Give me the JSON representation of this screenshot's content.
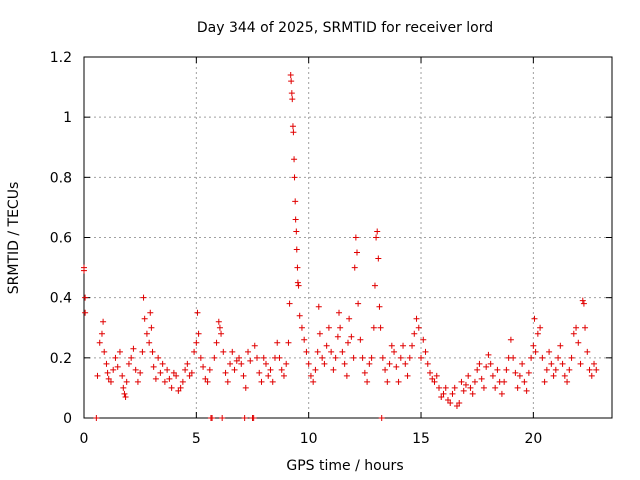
{
  "chart_data": {
    "type": "scatter",
    "title": "Day 344 of 2025, SRMTID for receiver lord",
    "xlabel": "GPS time / hours",
    "ylabel": "SRMTID / TECUs",
    "xlim": [
      0,
      23.5
    ],
    "ylim": [
      0,
      1.2
    ],
    "x_ticks": [
      0,
      5,
      10,
      15,
      20
    ],
    "y_ticks": [
      0,
      0.2,
      0.4,
      0.6,
      0.8,
      1,
      1.2
    ],
    "x_tick_labels": [
      "0",
      "5",
      "10",
      "15",
      "20"
    ],
    "y_tick_labels": [
      "0",
      "0.2",
      "0.4",
      "0.6",
      "0.8",
      "1",
      "1.2"
    ],
    "grid": true,
    "marker": "+",
    "marker_color": "#e00000",
    "series": [
      {
        "name": "SRMTID",
        "points": [
          [
            0.0,
            0.5
          ],
          [
            0.0,
            0.49
          ],
          [
            0.05,
            0.4
          ],
          [
            0.05,
            0.35
          ],
          [
            0.55,
            0.0
          ],
          [
            0.6,
            0.14
          ],
          [
            0.7,
            0.25
          ],
          [
            0.8,
            0.28
          ],
          [
            0.85,
            0.32
          ],
          [
            0.9,
            0.22
          ],
          [
            1.0,
            0.18
          ],
          [
            1.05,
            0.15
          ],
          [
            1.1,
            0.13
          ],
          [
            1.2,
            0.12
          ],
          [
            1.3,
            0.16
          ],
          [
            1.4,
            0.2
          ],
          [
            1.5,
            0.17
          ],
          [
            1.6,
            0.22
          ],
          [
            1.7,
            0.14
          ],
          [
            1.75,
            0.1
          ],
          [
            1.8,
            0.08
          ],
          [
            1.85,
            0.07
          ],
          [
            1.9,
            0.12
          ],
          [
            2.0,
            0.18
          ],
          [
            2.1,
            0.2
          ],
          [
            2.2,
            0.23
          ],
          [
            2.3,
            0.16
          ],
          [
            2.4,
            0.12
          ],
          [
            2.5,
            0.15
          ],
          [
            2.6,
            0.22
          ],
          [
            2.65,
            0.4
          ],
          [
            2.7,
            0.33
          ],
          [
            2.8,
            0.28
          ],
          [
            2.9,
            0.25
          ],
          [
            2.95,
            0.35
          ],
          [
            3.0,
            0.3
          ],
          [
            3.05,
            0.22
          ],
          [
            3.1,
            0.17
          ],
          [
            3.2,
            0.13
          ],
          [
            3.3,
            0.2
          ],
          [
            3.4,
            0.15
          ],
          [
            3.5,
            0.18
          ],
          [
            3.6,
            0.12
          ],
          [
            3.7,
            0.16
          ],
          [
            3.8,
            0.13
          ],
          [
            3.9,
            0.1
          ],
          [
            4.0,
            0.15
          ],
          [
            4.1,
            0.14
          ],
          [
            4.2,
            0.09
          ],
          [
            4.3,
            0.1
          ],
          [
            4.4,
            0.12
          ],
          [
            4.5,
            0.16
          ],
          [
            4.6,
            0.18
          ],
          [
            4.7,
            0.14
          ],
          [
            4.8,
            0.15
          ],
          [
            4.9,
            0.22
          ],
          [
            5.0,
            0.25
          ],
          [
            5.05,
            0.35
          ],
          [
            5.1,
            0.28
          ],
          [
            5.2,
            0.2
          ],
          [
            5.3,
            0.17
          ],
          [
            5.4,
            0.13
          ],
          [
            5.5,
            0.12
          ],
          [
            5.6,
            0.16
          ],
          [
            5.65,
            0.0
          ],
          [
            5.7,
            0.0
          ],
          [
            5.8,
            0.2
          ],
          [
            5.9,
            0.25
          ],
          [
            6.0,
            0.32
          ],
          [
            6.05,
            0.3
          ],
          [
            6.1,
            0.28
          ],
          [
            6.15,
            0.0
          ],
          [
            6.2,
            0.22
          ],
          [
            6.3,
            0.15
          ],
          [
            6.4,
            0.12
          ],
          [
            6.5,
            0.18
          ],
          [
            6.6,
            0.22
          ],
          [
            6.7,
            0.16
          ],
          [
            6.8,
            0.19
          ],
          [
            6.9,
            0.2
          ],
          [
            7.0,
            0.18
          ],
          [
            7.1,
            0.14
          ],
          [
            7.15,
            0.0
          ],
          [
            7.2,
            0.1
          ],
          [
            7.3,
            0.22
          ],
          [
            7.4,
            0.19
          ],
          [
            7.5,
            0.0
          ],
          [
            7.55,
            0.0
          ],
          [
            7.6,
            0.24
          ],
          [
            7.7,
            0.2
          ],
          [
            7.8,
            0.15
          ],
          [
            7.9,
            0.12
          ],
          [
            8.0,
            0.2
          ],
          [
            8.1,
            0.18
          ],
          [
            8.2,
            0.14
          ],
          [
            8.3,
            0.16
          ],
          [
            8.4,
            0.12
          ],
          [
            8.5,
            0.2
          ],
          [
            8.6,
            0.25
          ],
          [
            8.7,
            0.2
          ],
          [
            8.8,
            0.16
          ],
          [
            8.9,
            0.14
          ],
          [
            9.0,
            0.18
          ],
          [
            9.1,
            0.25
          ],
          [
            9.15,
            0.38
          ],
          [
            9.2,
            1.14
          ],
          [
            9.22,
            1.12
          ],
          [
            9.25,
            1.08
          ],
          [
            9.27,
            1.06
          ],
          [
            9.3,
            0.97
          ],
          [
            9.32,
            0.95
          ],
          [
            9.35,
            0.86
          ],
          [
            9.37,
            0.8
          ],
          [
            9.4,
            0.72
          ],
          [
            9.42,
            0.66
          ],
          [
            9.45,
            0.62
          ],
          [
            9.47,
            0.56
          ],
          [
            9.5,
            0.5
          ],
          [
            9.52,
            0.45
          ],
          [
            9.55,
            0.44
          ],
          [
            9.6,
            0.34
          ],
          [
            9.7,
            0.3
          ],
          [
            9.8,
            0.26
          ],
          [
            9.9,
            0.22
          ],
          [
            10.0,
            0.18
          ],
          [
            10.1,
            0.14
          ],
          [
            10.2,
            0.12
          ],
          [
            10.3,
            0.16
          ],
          [
            10.4,
            0.22
          ],
          [
            10.45,
            0.37
          ],
          [
            10.5,
            0.28
          ],
          [
            10.6,
            0.2
          ],
          [
            10.7,
            0.18
          ],
          [
            10.8,
            0.24
          ],
          [
            10.9,
            0.3
          ],
          [
            11.0,
            0.22
          ],
          [
            11.1,
            0.16
          ],
          [
            11.2,
            0.2
          ],
          [
            11.3,
            0.27
          ],
          [
            11.35,
            0.35
          ],
          [
            11.4,
            0.3
          ],
          [
            11.5,
            0.22
          ],
          [
            11.6,
            0.18
          ],
          [
            11.7,
            0.14
          ],
          [
            11.75,
            0.25
          ],
          [
            11.8,
            0.33
          ],
          [
            11.9,
            0.27
          ],
          [
            12.0,
            0.2
          ],
          [
            12.05,
            0.5
          ],
          [
            12.1,
            0.6
          ],
          [
            12.15,
            0.55
          ],
          [
            12.2,
            0.38
          ],
          [
            12.3,
            0.26
          ],
          [
            12.4,
            0.2
          ],
          [
            12.5,
            0.15
          ],
          [
            12.6,
            0.12
          ],
          [
            12.7,
            0.18
          ],
          [
            12.8,
            0.2
          ],
          [
            12.9,
            0.3
          ],
          [
            12.95,
            0.44
          ],
          [
            13.0,
            0.6
          ],
          [
            13.05,
            0.62
          ],
          [
            13.1,
            0.53
          ],
          [
            13.15,
            0.37
          ],
          [
            13.2,
            0.3
          ],
          [
            13.25,
            0.0
          ],
          [
            13.3,
            0.2
          ],
          [
            13.4,
            0.16
          ],
          [
            13.5,
            0.12
          ],
          [
            13.6,
            0.18
          ],
          [
            13.7,
            0.24
          ],
          [
            13.8,
            0.22
          ],
          [
            13.9,
            0.17
          ],
          [
            14.0,
            0.12
          ],
          [
            14.1,
            0.2
          ],
          [
            14.2,
            0.24
          ],
          [
            14.3,
            0.18
          ],
          [
            14.4,
            0.14
          ],
          [
            14.5,
            0.2
          ],
          [
            14.6,
            0.24
          ],
          [
            14.7,
            0.28
          ],
          [
            14.8,
            0.33
          ],
          [
            14.9,
            0.3
          ],
          [
            15.0,
            0.2
          ],
          [
            15.1,
            0.26
          ],
          [
            15.2,
            0.22
          ],
          [
            15.3,
            0.18
          ],
          [
            15.4,
            0.15
          ],
          [
            15.5,
            0.13
          ],
          [
            15.6,
            0.12
          ],
          [
            15.7,
            0.14
          ],
          [
            15.8,
            0.1
          ],
          [
            15.9,
            0.07
          ],
          [
            16.0,
            0.08
          ],
          [
            16.1,
            0.1
          ],
          [
            16.2,
            0.06
          ],
          [
            16.3,
            0.05
          ],
          [
            16.4,
            0.08
          ],
          [
            16.5,
            0.1
          ],
          [
            16.6,
            0.04
          ],
          [
            16.7,
            0.05
          ],
          [
            16.8,
            0.12
          ],
          [
            16.9,
            0.09
          ],
          [
            17.0,
            0.11
          ],
          [
            17.1,
            0.14
          ],
          [
            17.2,
            0.1
          ],
          [
            17.3,
            0.08
          ],
          [
            17.4,
            0.12
          ],
          [
            17.5,
            0.16
          ],
          [
            17.6,
            0.18
          ],
          [
            17.7,
            0.13
          ],
          [
            17.8,
            0.1
          ],
          [
            17.9,
            0.17
          ],
          [
            18.0,
            0.21
          ],
          [
            18.1,
            0.18
          ],
          [
            18.2,
            0.14
          ],
          [
            18.3,
            0.1
          ],
          [
            18.4,
            0.16
          ],
          [
            18.5,
            0.12
          ],
          [
            18.6,
            0.08
          ],
          [
            18.7,
            0.12
          ],
          [
            18.8,
            0.16
          ],
          [
            18.9,
            0.2
          ],
          [
            19.0,
            0.26
          ],
          [
            19.1,
            0.2
          ],
          [
            19.2,
            0.15
          ],
          [
            19.3,
            0.1
          ],
          [
            19.4,
            0.14
          ],
          [
            19.5,
            0.18
          ],
          [
            19.6,
            0.12
          ],
          [
            19.7,
            0.09
          ],
          [
            19.8,
            0.15
          ],
          [
            19.9,
            0.2
          ],
          [
            20.0,
            0.24
          ],
          [
            20.05,
            0.33
          ],
          [
            20.1,
            0.22
          ],
          [
            20.2,
            0.28
          ],
          [
            20.3,
            0.3
          ],
          [
            20.4,
            0.2
          ],
          [
            20.5,
            0.12
          ],
          [
            20.6,
            0.16
          ],
          [
            20.7,
            0.22
          ],
          [
            20.8,
            0.18
          ],
          [
            20.9,
            0.14
          ],
          [
            21.0,
            0.16
          ],
          [
            21.1,
            0.2
          ],
          [
            21.2,
            0.24
          ],
          [
            21.3,
            0.18
          ],
          [
            21.4,
            0.14
          ],
          [
            21.5,
            0.12
          ],
          [
            21.6,
            0.16
          ],
          [
            21.7,
            0.2
          ],
          [
            21.8,
            0.28
          ],
          [
            21.9,
            0.3
          ],
          [
            22.0,
            0.25
          ],
          [
            22.1,
            0.18
          ],
          [
            22.2,
            0.39
          ],
          [
            22.25,
            0.38
          ],
          [
            22.3,
            0.3
          ],
          [
            22.4,
            0.22
          ],
          [
            22.5,
            0.16
          ],
          [
            22.6,
            0.14
          ],
          [
            22.7,
            0.18
          ],
          [
            22.8,
            0.16
          ]
        ]
      }
    ]
  }
}
